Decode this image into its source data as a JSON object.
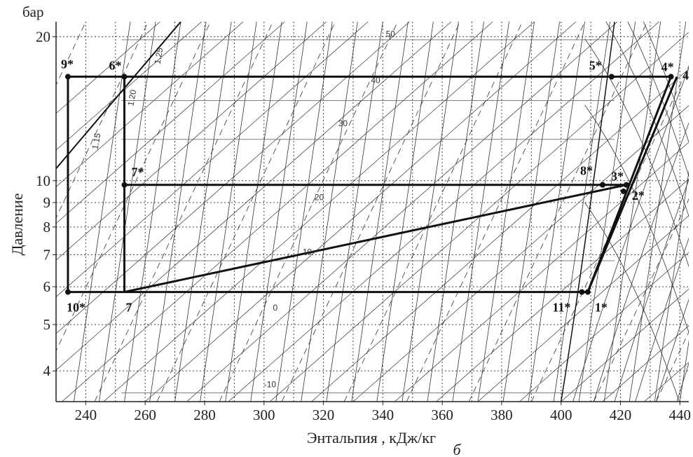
{
  "chart_data": {
    "type": "line",
    "title": "",
    "xlabel": "Энтальпия , кДж/кг",
    "ylabel": "Давление",
    "y_unit": "бар",
    "sublabel": "б",
    "xlim": [
      230,
      443
    ],
    "ylim": [
      3.45,
      21.5
    ],
    "y_scale": "log",
    "grid": true,
    "x_ticks": [
      "240",
      "260",
      "280",
      "300",
      "320",
      "340",
      "360",
      "380",
      "400",
      "420",
      "440"
    ],
    "y_ticks": [
      "4",
      "5",
      "6",
      "7",
      "8",
      "9",
      "10",
      "20"
    ],
    "isotherm_labels": [
      "50",
      "40",
      "30",
      "20",
      "10",
      "0",
      "-10"
    ],
    "density_labels": [
      "1.25",
      "1.20",
      "1.15"
    ],
    "points": [
      {
        "name": "1*",
        "x": 409,
        "y": 5.85
      },
      {
        "name": "11*",
        "x": 407,
        "y": 5.85
      },
      {
        "name": "2*",
        "x": 421,
        "y": 9.5
      },
      {
        "name": "3*",
        "x": 422,
        "y": 9.8
      },
      {
        "name": "4*",
        "x": 437,
        "y": 16.5
      },
      {
        "name": "4",
        "x": 439,
        "y": 16.5
      },
      {
        "name": "5*",
        "x": 417,
        "y": 16.5
      },
      {
        "name": "6*",
        "x": 253,
        "y": 16.5
      },
      {
        "name": "7*",
        "x": 253,
        "y": 9.8
      },
      {
        "name": "7",
        "x": 253,
        "y": 5.85
      },
      {
        "name": "8*",
        "x": 414,
        "y": 9.8
      },
      {
        "name": "9*",
        "x": 234,
        "y": 16.5
      },
      {
        "name": "10*",
        "x": 234,
        "y": 5.85
      }
    ],
    "series": [
      {
        "x": [
          234,
          437,
          409,
          234,
          234
        ],
        "y": [
          16.5,
          16.5,
          5.85,
          5.85,
          16.5
        ]
      },
      {
        "x": [
          253,
          253,
          422
        ],
        "y": [
          16.5,
          5.85,
          9.8
        ]
      },
      {
        "x": [
          253,
          422
        ],
        "y": [
          9.8,
          9.8
        ]
      },
      {
        "x": [
          409,
          439
        ],
        "y": [
          5.85,
          16.5
        ]
      }
    ]
  }
}
